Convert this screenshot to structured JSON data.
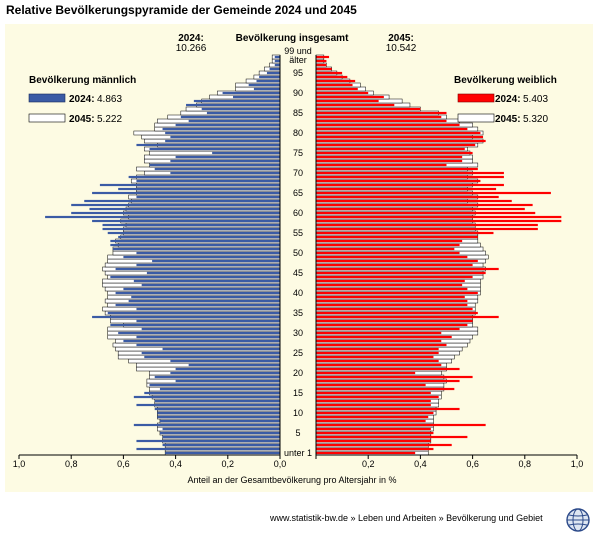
{
  "title": "Relative Bevölkerungspyramide der Gemeinde 2024 und 2045",
  "footer": "www.statistik-bw.de » Leben und Arbeiten » Bevölkerung und Gebiet",
  "colors": {
    "male2024": "#3b5ba5",
    "female2024": "#ff0000",
    "year2045": "#ffffff",
    "background": "#fdfbe3"
  },
  "chart_data": {
    "type": "bar",
    "title": "Relative Bevölkerungspyramide der Gemeinde 2024 und 2045",
    "center_label": "Bevölkerung insgesamt",
    "total_2024_label": "2024:",
    "total_2024": "10.266",
    "total_2045_label": "2045:",
    "total_2045": "10.542",
    "xlabel": "Anteil an der Gesamtbevölkerung pro Altersjahr in %",
    "xlim": [
      0,
      1.0
    ],
    "x_ticks": [
      "1,0",
      "0,8",
      "0,6",
      "0,4",
      "0,2",
      "0,0",
      "0,2",
      "0,4",
      "0,6",
      "0,8",
      "1,0"
    ],
    "age_ticks": [
      "unter 1",
      "5",
      "10",
      "15",
      "20",
      "25",
      "30",
      "35",
      "40",
      "45",
      "50",
      "55",
      "60",
      "65",
      "70",
      "75",
      "80",
      "85",
      "90",
      "95"
    ],
    "top_label_1": "99 und",
    "top_label_2": "älter",
    "male_legend": {
      "title": "Bevölkerung männlich",
      "entries": [
        {
          "year": "2024:",
          "value": "4.863"
        },
        {
          "year": "2045:",
          "value": "5.222"
        }
      ]
    },
    "female_legend": {
      "title": "Bevölkerung weiblich",
      "entries": [
        {
          "year": "2024:",
          "value": "5.403"
        },
        {
          "year": "2045:",
          "value": "5.320"
        }
      ]
    },
    "ages": [
      0,
      1,
      2,
      3,
      4,
      5,
      6,
      7,
      8,
      9,
      10,
      11,
      12,
      13,
      14,
      15,
      16,
      17,
      18,
      19,
      20,
      21,
      22,
      23,
      24,
      25,
      26,
      27,
      28,
      29,
      30,
      31,
      32,
      33,
      34,
      35,
      36,
      37,
      38,
      39,
      40,
      41,
      42,
      43,
      44,
      45,
      46,
      47,
      48,
      49,
      50,
      51,
      52,
      53,
      54,
      55,
      56,
      57,
      58,
      59,
      60,
      61,
      62,
      63,
      64,
      65,
      66,
      67,
      68,
      69,
      70,
      71,
      72,
      73,
      74,
      75,
      76,
      77,
      78,
      79,
      80,
      81,
      82,
      83,
      84,
      85,
      86,
      87,
      88,
      89,
      90,
      91,
      92,
      93,
      94,
      95,
      96,
      97,
      98,
      99
    ],
    "series": [
      {
        "name": "Bevölkerung männlich 2024",
        "values": [
          0.44,
          0.55,
          0.45,
          0.55,
          0.45,
          0.46,
          0.45,
          0.56,
          0.46,
          0.47,
          0.47,
          0.48,
          0.55,
          0.48,
          0.56,
          0.52,
          0.46,
          0.5,
          0.4,
          0.48,
          0.42,
          0.4,
          0.35,
          0.42,
          0.52,
          0.53,
          0.45,
          0.55,
          0.6,
          0.55,
          0.62,
          0.53,
          0.65,
          0.55,
          0.72,
          0.66,
          0.55,
          0.63,
          0.58,
          0.57,
          0.63,
          0.6,
          0.53,
          0.56,
          0.65,
          0.51,
          0.63,
          0.55,
          0.49,
          0.6,
          0.55,
          0.64,
          0.65,
          0.65,
          0.62,
          0.66,
          0.68,
          0.68,
          0.72,
          0.9,
          0.8,
          0.73,
          0.8,
          0.75,
          0.55,
          0.72,
          0.62,
          0.69,
          0.55,
          0.58,
          0.42,
          0.48,
          0.5,
          0.42,
          0.4,
          0.26,
          0.5,
          0.55,
          0.44,
          0.42,
          0.44,
          0.45,
          0.4,
          0.35,
          0.38,
          0.28,
          0.3,
          0.36,
          0.33,
          0.18,
          0.22,
          0.1,
          0.12,
          0.09,
          0.08,
          0.05,
          0.04,
          0.02,
          0.02,
          0.02
        ]
      },
      {
        "name": "Bevölkerung männlich 2045",
        "values": [
          0.44,
          0.44,
          0.44,
          0.45,
          0.45,
          0.46,
          0.47,
          0.47,
          0.46,
          0.47,
          0.47,
          0.47,
          0.48,
          0.48,
          0.49,
          0.5,
          0.5,
          0.51,
          0.51,
          0.5,
          0.5,
          0.55,
          0.55,
          0.58,
          0.62,
          0.62,
          0.63,
          0.64,
          0.63,
          0.66,
          0.66,
          0.66,
          0.6,
          0.65,
          0.65,
          0.67,
          0.68,
          0.66,
          0.67,
          0.66,
          0.66,
          0.67,
          0.68,
          0.68,
          0.66,
          0.67,
          0.68,
          0.67,
          0.66,
          0.66,
          0.64,
          0.64,
          0.62,
          0.63,
          0.61,
          0.6,
          0.6,
          0.59,
          0.61,
          0.58,
          0.6,
          0.59,
          0.58,
          0.57,
          0.58,
          0.55,
          0.55,
          0.55,
          0.57,
          0.55,
          0.52,
          0.55,
          0.5,
          0.52,
          0.52,
          0.5,
          0.52,
          0.47,
          0.52,
          0.53,
          0.56,
          0.48,
          0.48,
          0.47,
          0.43,
          0.38,
          0.36,
          0.32,
          0.3,
          0.27,
          0.24,
          0.17,
          0.17,
          0.13,
          0.1,
          0.08,
          0.06,
          0.04,
          0.03,
          0.03
        ]
      },
      {
        "name": "Bevölkerung weiblich 2024",
        "values": [
          0.38,
          0.45,
          0.52,
          0.44,
          0.58,
          0.45,
          0.44,
          0.65,
          0.42,
          0.43,
          0.45,
          0.55,
          0.44,
          0.44,
          0.47,
          0.44,
          0.53,
          0.42,
          0.55,
          0.6,
          0.38,
          0.55,
          0.48,
          0.47,
          0.45,
          0.47,
          0.47,
          0.5,
          0.48,
          0.52,
          0.48,
          0.55,
          0.58,
          0.6,
          0.7,
          0.62,
          0.6,
          0.58,
          0.58,
          0.57,
          0.62,
          0.58,
          0.56,
          0.57,
          0.6,
          0.65,
          0.7,
          0.6,
          0.62,
          0.58,
          0.55,
          0.53,
          0.55,
          0.56,
          0.62,
          0.68,
          0.85,
          0.85,
          0.94,
          0.94,
          0.84,
          0.8,
          0.83,
          0.75,
          0.7,
          0.9,
          0.69,
          0.72,
          0.63,
          0.72,
          0.72,
          0.62,
          0.5,
          0.56,
          0.56,
          0.6,
          0.57,
          0.61,
          0.65,
          0.64,
          0.63,
          0.58,
          0.55,
          0.5,
          0.48,
          0.5,
          0.4,
          0.3,
          0.24,
          0.26,
          0.2,
          0.16,
          0.14,
          0.15,
          0.12,
          0.1,
          0.06,
          0.04,
          0.04,
          0.05
        ]
      },
      {
        "name": "Bevölkerung weiblich 2045",
        "values": [
          0.43,
          0.43,
          0.43,
          0.44,
          0.44,
          0.44,
          0.45,
          0.45,
          0.45,
          0.45,
          0.46,
          0.46,
          0.47,
          0.47,
          0.48,
          0.48,
          0.49,
          0.49,
          0.5,
          0.49,
          0.48,
          0.5,
          0.5,
          0.52,
          0.53,
          0.55,
          0.56,
          0.58,
          0.59,
          0.6,
          0.62,
          0.62,
          0.6,
          0.6,
          0.6,
          0.61,
          0.61,
          0.61,
          0.62,
          0.62,
          0.63,
          0.63,
          0.63,
          0.63,
          0.64,
          0.64,
          0.65,
          0.64,
          0.65,
          0.66,
          0.65,
          0.64,
          0.63,
          0.62,
          0.62,
          0.62,
          0.61,
          0.61,
          0.6,
          0.6,
          0.61,
          0.6,
          0.62,
          0.58,
          0.62,
          0.6,
          0.58,
          0.6,
          0.62,
          0.58,
          0.6,
          0.58,
          0.62,
          0.6,
          0.6,
          0.59,
          0.58,
          0.62,
          0.64,
          0.6,
          0.64,
          0.62,
          0.6,
          0.55,
          0.5,
          0.47,
          0.4,
          0.36,
          0.33,
          0.28,
          0.22,
          0.19,
          0.17,
          0.13,
          0.1,
          0.08,
          0.06,
          0.04,
          0.03,
          0.03
        ]
      }
    ]
  }
}
